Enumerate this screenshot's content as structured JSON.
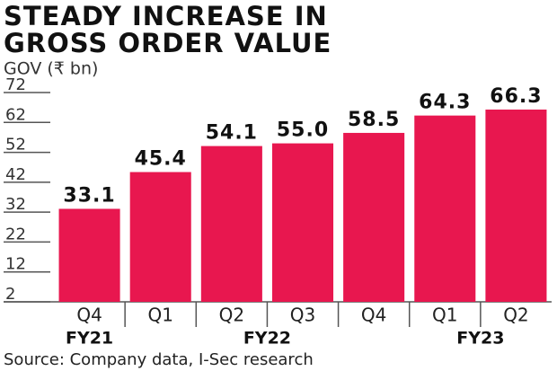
{
  "chart_data": {
    "type": "bar",
    "title_lines": [
      "STEADY INCREASE IN",
      "GROSS ORDER VALUE"
    ],
    "subtitle": "GOV (₹ bn)",
    "groups": [
      {
        "name": "FY21",
        "categories": [
          "Q4"
        ],
        "values": [
          33.1
        ],
        "value_labels": [
          "33.1"
        ]
      },
      {
        "name": "FY22",
        "categories": [
          "Q1",
          "Q2",
          "Q3",
          "Q4"
        ],
        "values": [
          45.4,
          54.1,
          55.0,
          58.5
        ],
        "value_labels": [
          "45.4",
          "54.1",
          "55.0",
          "58.5"
        ]
      },
      {
        "name": "FY23",
        "categories": [
          "Q1",
          "Q2"
        ],
        "values": [
          64.3,
          66.3
        ],
        "value_labels": [
          "64.3",
          "66.3"
        ]
      }
    ],
    "color": "#e8174f",
    "ylim": [
      2,
      72
    ],
    "yticks": [
      2,
      12,
      22,
      32,
      42,
      52,
      62,
      72
    ],
    "source": "Source: Company data, I-Sec research"
  }
}
